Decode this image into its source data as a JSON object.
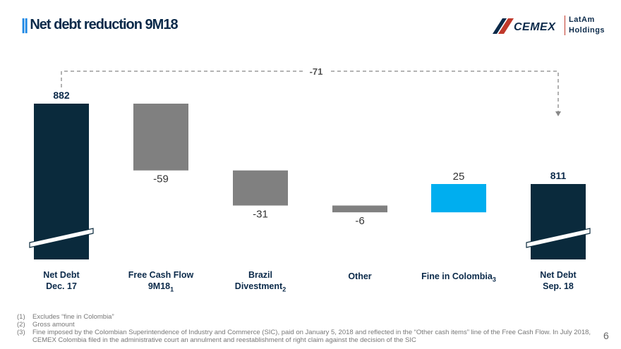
{
  "header": {
    "title_mark": "||",
    "title": "Net debt reduction 9M18",
    "logo": {
      "name": "CEMEX",
      "sub_line1": "LatAm",
      "sub_line2": "Holdings"
    }
  },
  "chart_data": {
    "type": "bar",
    "subtype": "waterfall",
    "categories": [
      {
        "line1": "Net Debt",
        "line2": "Dec. 17",
        "sub": ""
      },
      {
        "line1": "Free Cash Flow",
        "line2": "9M18",
        "sub": "1"
      },
      {
        "line1": "Brazil",
        "line2": "Divestment",
        "sub": "2"
      },
      {
        "line1": "Other",
        "line2": "",
        "sub": ""
      },
      {
        "line1": "Fine in Colombia",
        "line2": "",
        "sub": "3"
      },
      {
        "line1": "Net Debt",
        "line2": "Sep. 18",
        "sub": ""
      }
    ],
    "values": [
      882,
      -59,
      -31,
      -6,
      25,
      811
    ],
    "labels": [
      "882",
      "-59",
      "-31",
      "-6",
      "25",
      "811"
    ],
    "kinds": [
      "total",
      "delta",
      "delta",
      "delta",
      "delta",
      "total"
    ],
    "annotation": "-71",
    "axis_break": true,
    "colors": {
      "total": "#0a2a3c",
      "decrease": "#808080",
      "increase": "#00aeef",
      "bracket": "#888888"
    }
  },
  "footnotes": [
    {
      "num": "(1)",
      "text": "Excludes “fine in Colombia”"
    },
    {
      "num": "(2)",
      "text": "Gross amount"
    },
    {
      "num": "(3)",
      "text": "Fine imposed by the Colombian Superintendence of Industry and Commerce (SIC), paid on January 5, 2018 and reflected in the “Other cash items” line of the Free Cash Flow. In July 2018, CEMEX Colombia filed in the administrative court an annulment and reestablishment of right claim against the decision of the SIC"
    }
  ],
  "page_number": "6"
}
